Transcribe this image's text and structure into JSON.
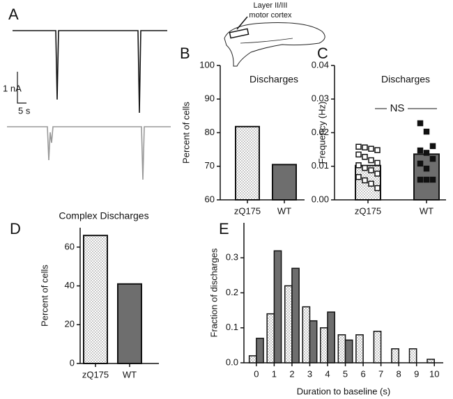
{
  "panel_a": {
    "label": "A",
    "scale_current": "1 nA",
    "scale_time": "5 s"
  },
  "annotation": [
    "Layer II/III",
    "motor cortex"
  ],
  "chart_data": [
    {
      "type": "bar",
      "panel": "B",
      "title": "Discharges",
      "y_label": "Percent of cells",
      "categories": [
        "zQ175",
        "WT"
      ],
      "values": [
        81.8,
        70.5
      ],
      "colors": [
        "#c8c8c8",
        "#6e6e6e"
      ],
      "ylim": [
        60,
        100
      ],
      "yticks": [
        60,
        70,
        80,
        90,
        100
      ]
    },
    {
      "type": "bar",
      "panel": "C",
      "title": "Discharges",
      "y_label": "Frequency (Hz)",
      "annotation": "NS",
      "categories": [
        "zQ175",
        "WT"
      ],
      "values": [
        0.0102,
        0.0136
      ],
      "colors": [
        "#c8c8c8",
        "#6e6e6e"
      ],
      "points": [
        [
          0.0158,
          0.0156,
          0.0152,
          0.0148,
          0.0135,
          0.0128,
          0.0118,
          0.011,
          0.0103,
          0.0095,
          0.0088,
          0.0078,
          0.0068,
          0.0058,
          0.0048,
          0.0035
        ],
        [
          0.0228,
          0.0203,
          0.016,
          0.0147,
          0.014,
          0.0122,
          0.0108,
          0.0093,
          0.006,
          0.006,
          0.006
        ]
      ],
      "ylim": [
        0,
        0.04
      ],
      "yticks": [
        {
          "value": 0,
          "label": "0.00"
        },
        0.01,
        0.02,
        0.03,
        0.04
      ]
    },
    {
      "type": "bar",
      "panel": "D",
      "title": "Complex Discharges",
      "y_label": "Percent of cells",
      "categories": [
        "zQ175",
        "WT"
      ],
      "values": [
        66,
        41
      ],
      "colors": [
        "#c8c8c8",
        "#6e6e6e"
      ],
      "ylim": [
        0,
        70
      ],
      "yticks": [
        0,
        20,
        40,
        60
      ]
    },
    {
      "type": "grouped",
      "panel": "E",
      "y_label": "Fraction of discharges",
      "x_label": "Duration to baseline (s)",
      "x": [
        0,
        1,
        2,
        3,
        4,
        5,
        6,
        7,
        8,
        9,
        10
      ],
      "series": [
        {
          "color": "#c8c8c8",
          "values": [
            0.02,
            0.14,
            0.22,
            0.16,
            0.1,
            0.08,
            0.08,
            0.09,
            0.04,
            0.04,
            0.01
          ]
        },
        {
          "color": "#6e6e6e",
          "values": [
            0.07,
            0.32,
            0.27,
            0.12,
            0.145,
            0.065,
            0,
            0,
            0,
            0,
            0
          ]
        }
      ],
      "xlim": [
        -0.7,
        10.5
      ],
      "xticks": [
        0,
        1,
        2,
        3,
        4,
        5,
        6,
        7,
        8,
        9,
        10
      ],
      "ylim": [
        0,
        0.4
      ],
      "yticks": [
        {
          "value": 0,
          "label": "0.0"
        },
        0.1,
        0.2,
        0.3
      ]
    }
  ]
}
